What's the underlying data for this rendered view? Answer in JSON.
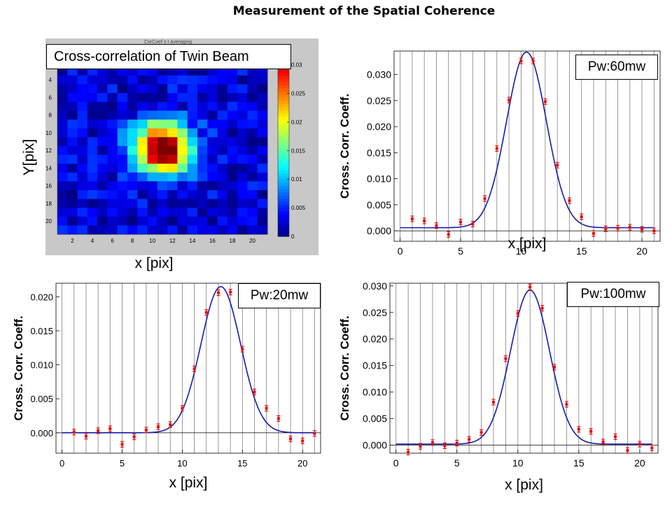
{
  "page_title": "Measurement of the Spatial Coherence",
  "heatmap": {
    "overlay_label": "Cross-correlation of Twin Beam",
    "faint_header": "CorCoef s t averaging",
    "ylabel": "Y[pix]",
    "xlabel": "x [pix]",
    "x_ticks": [
      "2",
      "4",
      "6",
      "8",
      "10",
      "12",
      "14",
      "16",
      "18",
      "20"
    ],
    "y_ticks": [
      "4",
      "6",
      "8",
      "10",
      "12",
      "14",
      "16",
      "18",
      "20"
    ],
    "colorbar_ticks": [
      "0.03",
      "0.025",
      "0.02",
      "0.015",
      "0.01",
      "0.005",
      "0"
    ]
  },
  "plots": [
    {
      "label": "Pw:60mw",
      "ylabel": "Cross. Corr. Coeff.",
      "xlabel": "x [pix]",
      "yticks": [
        "0.000",
        "0.005",
        "0.010",
        "0.015",
        "0.020",
        "0.025",
        "0.030"
      ],
      "xticks": [
        "0",
        "5",
        "10",
        "15",
        "20"
      ]
    },
    {
      "label": "Pw:20mw",
      "ylabel": "Cross. Corr. Coeff.",
      "xlabel": "x [pix]",
      "yticks": [
        "0.000",
        "0.005",
        "0.010",
        "0.015",
        "0.020"
      ],
      "xticks": [
        "0",
        "5",
        "10",
        "15",
        "20"
      ]
    },
    {
      "label": "Pw:100mw",
      "ylabel": "Cross. Corr. Coeff.",
      "xlabel": "x [pix]",
      "yticks": [
        "0.000",
        "0.005",
        "0.010",
        "0.015",
        "0.020",
        "0.025",
        "0.030"
      ],
      "xticks": [
        "0",
        "5",
        "10",
        "15",
        "20"
      ]
    }
  ],
  "colors": {
    "data_points": "#e01010",
    "fit_line": "#1a1aa8",
    "grid": "#808080"
  },
  "chart_data": [
    {
      "type": "heatmap",
      "title": "Cross-correlation of Twin Beam",
      "xlabel": "x [pix]",
      "ylabel": "Y[pix]",
      "x_range": [
        1,
        21
      ],
      "y_range": [
        1,
        21
      ],
      "color_range": [
        0,
        0.033
      ],
      "colormap": "jet",
      "peak": {
        "x": 11,
        "y": 11.8,
        "value": 0.034
      },
      "peak_width_pix": 2.0,
      "background_level": 0.003
    },
    {
      "type": "scatter",
      "label": "Pw:60mw",
      "xlabel": "x [pix]",
      "ylabel": "Cross. Corr. Coeff.",
      "xlim": [
        -0.5,
        21.5
      ],
      "ylim": [
        -0.002,
        0.0345
      ],
      "x": [
        1,
        2,
        3,
        4,
        5,
        6,
        7,
        8,
        9,
        10,
        11,
        12,
        13,
        14,
        15,
        16,
        17,
        18,
        19,
        20,
        21
      ],
      "y": [
        0.0023,
        0.0019,
        0.001,
        -0.0007,
        0.0017,
        0.0013,
        0.0062,
        0.0158,
        0.0251,
        0.0326,
        0.0326,
        0.0248,
        0.0126,
        0.0058,
        0.0027,
        -0.0005,
        0.0004,
        0.0005,
        0.0007,
        0.0003,
        0.0
      ],
      "fit": {
        "baseline": 0.0006,
        "amplitude": 0.0337,
        "center": 10.45,
        "sigma": 1.65
      }
    },
    {
      "type": "scatter",
      "label": "Pw:20mw",
      "xlabel": "x [pix]",
      "ylabel": "Cross. Corr. Coeff.",
      "xlim": [
        -0.5,
        21.5
      ],
      "ylim": [
        -0.003,
        0.022
      ],
      "x": [
        1,
        2,
        3,
        4,
        5,
        6,
        7,
        8,
        9,
        10,
        11,
        12,
        13,
        14,
        15,
        16,
        17,
        18,
        19,
        20,
        21
      ],
      "y": [
        0.0001,
        -0.0005,
        0.0003,
        0.0006,
        -0.0017,
        -0.0006,
        0.0004,
        0.0009,
        0.0012,
        0.0036,
        0.0094,
        0.0177,
        0.0206,
        0.0207,
        0.0123,
        0.006,
        0.0036,
        0.0021,
        -0.0009,
        -0.0012,
        -0.0001
      ],
      "fit": {
        "baseline": 0.0,
        "amplitude": 0.0215,
        "center": 13.2,
        "sigma": 1.65
      }
    },
    {
      "type": "scatter",
      "label": "Pw:100mw",
      "xlabel": "x [pix]",
      "ylabel": "Cross. Corr. Coeff.",
      "xlim": [
        -0.5,
        21.5
      ],
      "ylim": [
        -0.0015,
        0.0305
      ],
      "x": [
        1,
        2,
        3,
        4,
        5,
        6,
        7,
        8,
        9,
        10,
        11,
        12,
        13,
        14,
        15,
        16,
        17,
        18,
        19,
        20,
        21
      ],
      "y": [
        -0.0013,
        -0.0002,
        0.0005,
        -0.0001,
        0.0004,
        0.0011,
        0.0024,
        0.0081,
        0.0163,
        0.0248,
        0.0298,
        0.0258,
        0.0147,
        0.0077,
        0.003,
        0.0026,
        0.0006,
        0.0016,
        -0.001,
        0.0002,
        -0.0005
      ],
      "fit": {
        "baseline": 0.0002,
        "amplitude": 0.029,
        "center": 11.0,
        "sigma": 1.6
      }
    }
  ]
}
